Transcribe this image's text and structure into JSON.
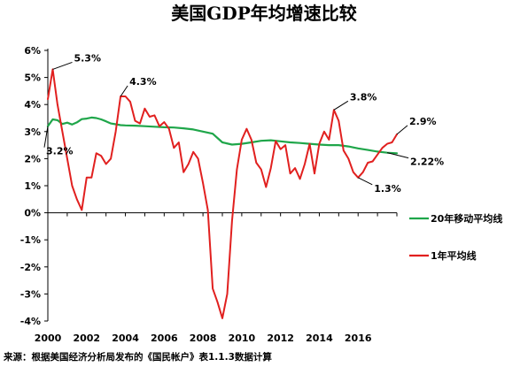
{
  "chart_data": {
    "type": "line",
    "title": "美国GDP年均增速比较",
    "xlabel": "",
    "ylabel": "",
    "xlim": [
      2000,
      2018
    ],
    "ylim": [
      -4,
      6
    ],
    "x_ticks": [
      "2000",
      "2002",
      "2004",
      "2006",
      "2008",
      "2010",
      "2012",
      "2014",
      "2016"
    ],
    "y_ticks": [
      "6%",
      "5%",
      "4%",
      "3%",
      "2%",
      "1%",
      "0%",
      "-1%",
      "-2%",
      "-3%",
      "-4%"
    ],
    "grid": false,
    "legend_position": "right",
    "series": [
      {
        "name": "20年移动平均线",
        "color": "#1fa64a",
        "x": [
          2000.0,
          2000.25,
          2000.5,
          2000.75,
          2001.0,
          2001.25,
          2001.5,
          2001.75,
          2002.0,
          2002.25,
          2002.5,
          2002.75,
          2003.0,
          2003.25,
          2003.5,
          2003.75,
          2004.0,
          2004.5,
          2005.0,
          2005.5,
          2006.0,
          2006.5,
          2007.0,
          2007.5,
          2008.0,
          2008.5,
          2009.0,
          2009.5,
          2010.0,
          2010.5,
          2011.0,
          2011.5,
          2012.0,
          2012.5,
          2013.0,
          2013.5,
          2014.0,
          2014.5,
          2015.0,
          2015.5,
          2016.0,
          2016.5,
          2017.0,
          2017.5,
          2018.0
        ],
        "values": [
          3.2,
          3.45,
          3.42,
          3.28,
          3.33,
          3.26,
          3.34,
          3.46,
          3.48,
          3.52,
          3.5,
          3.45,
          3.38,
          3.3,
          3.27,
          3.24,
          3.23,
          3.22,
          3.2,
          3.18,
          3.16,
          3.15,
          3.12,
          3.08,
          3.0,
          2.92,
          2.6,
          2.52,
          2.55,
          2.6,
          2.66,
          2.68,
          2.64,
          2.6,
          2.58,
          2.55,
          2.52,
          2.5,
          2.5,
          2.45,
          2.38,
          2.32,
          2.26,
          2.22,
          2.2
        ]
      },
      {
        "name": "1年平均线",
        "color": "#e1201f",
        "x": [
          2000.0,
          2000.25,
          2000.5,
          2000.75,
          2001.0,
          2001.25,
          2001.5,
          2001.75,
          2002.0,
          2002.25,
          2002.5,
          2002.75,
          2003.0,
          2003.25,
          2003.5,
          2003.75,
          2004.0,
          2004.25,
          2004.5,
          2004.75,
          2005.0,
          2005.25,
          2005.5,
          2005.75,
          2006.0,
          2006.25,
          2006.5,
          2006.75,
          2007.0,
          2007.25,
          2007.5,
          2007.75,
          2008.0,
          2008.25,
          2008.5,
          2008.75,
          2009.0,
          2009.25,
          2009.5,
          2009.75,
          2010.0,
          2010.25,
          2010.5,
          2010.75,
          2011.0,
          2011.25,
          2011.5,
          2011.75,
          2012.0,
          2012.25,
          2012.5,
          2012.75,
          2013.0,
          2013.25,
          2013.5,
          2013.75,
          2014.0,
          2014.25,
          2014.5,
          2014.75,
          2015.0,
          2015.25,
          2015.5,
          2015.75,
          2016.0,
          2016.25,
          2016.5,
          2016.75,
          2017.0,
          2017.25,
          2017.5,
          2017.75,
          2018.0
        ],
        "values": [
          4.2,
          5.3,
          4.0,
          3.0,
          2.0,
          1.0,
          0.5,
          0.1,
          1.3,
          1.3,
          2.2,
          2.1,
          1.8,
          2.0,
          3.0,
          4.3,
          4.3,
          4.1,
          3.4,
          3.3,
          3.85,
          3.55,
          3.6,
          3.2,
          3.35,
          3.1,
          2.4,
          2.6,
          1.5,
          1.8,
          2.25,
          2.0,
          1.1,
          0.1,
          -2.8,
          -3.3,
          -3.9,
          -3.0,
          -0.3,
          1.6,
          2.7,
          3.1,
          2.7,
          1.85,
          1.6,
          0.95,
          1.65,
          2.65,
          2.35,
          2.5,
          1.45,
          1.65,
          1.25,
          1.8,
          2.55,
          1.45,
          2.55,
          3.0,
          2.7,
          3.8,
          3.4,
          2.3,
          2.0,
          1.5,
          1.3,
          1.5,
          1.85,
          1.9,
          2.15,
          2.4,
          2.55,
          2.6,
          2.9
        ]
      }
    ],
    "annotations": [
      {
        "text": "5.3%",
        "series": 1,
        "x": 2000.25,
        "y": 5.3
      },
      {
        "text": "3.2%",
        "series": 0,
        "x": 2000.0,
        "y": 3.2
      },
      {
        "text": "4.3%",
        "series": 1,
        "x": 2003.75,
        "y": 4.3
      },
      {
        "text": "3.8%",
        "series": 1,
        "x": 2014.75,
        "y": 3.8
      },
      {
        "text": "1.3%",
        "series": 1,
        "x": 2016.0,
        "y": 1.3
      },
      {
        "text": "2.9%",
        "series": 1,
        "x": 2018.0,
        "y": 2.9
      },
      {
        "text": "2.22%",
        "series": 0,
        "x": 2017.5,
        "y": 2.22
      }
    ]
  },
  "source": "来源：根据美国经济分析局发布的《国民帐户》表1.1.3数据计算"
}
